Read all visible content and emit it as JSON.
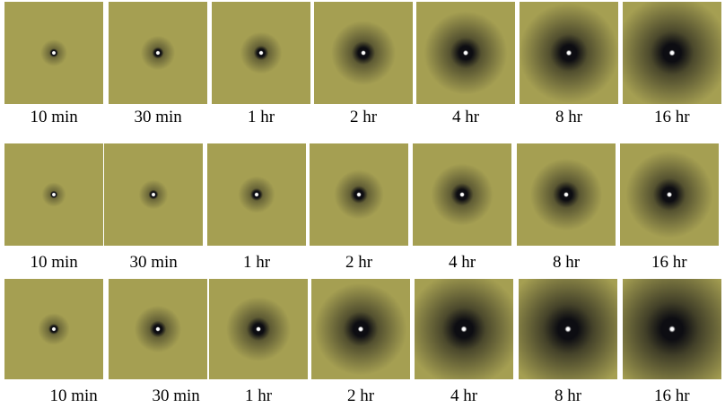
{
  "colors": {
    "tile_background": "#a59f52",
    "stain_core": "#0d0d12",
    "pin_highlight": "#ffffff"
  },
  "rows": [
    {
      "tiles": [
        {
          "label": "10 min",
          "spread": 0.1
        },
        {
          "label": "30 min",
          "spread": 0.16
        },
        {
          "label": "1 hr",
          "spread": 0.22
        },
        {
          "label": "2 hr",
          "spread": 0.4
        },
        {
          "label": "4 hr",
          "spread": 0.55
        },
        {
          "label": "8 hr",
          "spread": 0.68
        },
        {
          "label": "16 hr",
          "spread": 0.8
        }
      ]
    },
    {
      "tiles": [
        {
          "label": "10 min",
          "spread": 0.08
        },
        {
          "label": "30 min",
          "spread": 0.12
        },
        {
          "label": "1 hr",
          "spread": 0.18
        },
        {
          "label": "2 hr",
          "spread": 0.28
        },
        {
          "label": "4 hr",
          "spread": 0.38
        },
        {
          "label": "8 hr",
          "spread": 0.46
        },
        {
          "label": "16 hr",
          "spread": 0.58
        }
      ]
    },
    {
      "tiles": [
        {
          "label": "10 min",
          "spread": 0.14
        },
        {
          "label": "30 min",
          "spread": 0.26
        },
        {
          "label": "1 hr",
          "spread": 0.4
        },
        {
          "label": "2 hr",
          "spread": 0.62
        },
        {
          "label": "4 hr",
          "spread": 0.8
        },
        {
          "label": "8 hr",
          "spread": 0.92
        },
        {
          "label": "16 hr",
          "spread": 1.0
        }
      ]
    }
  ]
}
